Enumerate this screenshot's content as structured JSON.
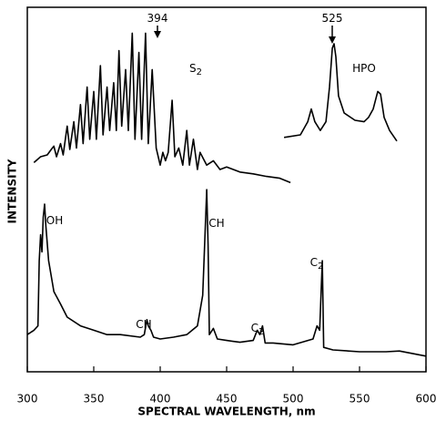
{
  "chart_data": {
    "type": "line",
    "xlabel": "SPECTRAL WAVELENGTH, nm",
    "ylabel": "INTENSITY",
    "xlim": [
      300,
      600
    ],
    "ylim": [
      0,
      100
    ],
    "xticks": [
      300,
      350,
      400,
      450,
      500,
      550,
      600
    ],
    "series": [
      {
        "color": "#000000",
        "x": [
          305,
          310,
          315,
          318,
          320,
          322,
          325,
          327,
          330,
          332,
          335,
          337,
          340,
          342,
          345,
          347,
          350,
          352,
          355,
          357,
          360,
          362,
          365,
          367,
          369,
          371,
          374,
          376,
          379,
          381,
          384,
          386,
          389,
          391,
          394,
          397,
          400,
          402,
          404,
          406,
          409,
          411,
          414,
          417,
          420,
          422,
          425,
          428,
          430,
          435,
          440,
          445,
          450,
          460,
          470,
          480,
          490,
          498
        ],
        "values": [
          57.4,
          59.0,
          59.5,
          61.0,
          61.9,
          59.0,
          62.6,
          59.5,
          67.4,
          61.0,
          68.6,
          61.4,
          73.3,
          62.6,
          78.1,
          63.8,
          76.9,
          63.8,
          84.0,
          65.0,
          78.1,
          66.2,
          79.3,
          66.2,
          88.1,
          67.4,
          82.9,
          66.2,
          92.9,
          63.8,
          87.6,
          63.8,
          92.9,
          62.6,
          82.9,
          61.4,
          56.7,
          60.2,
          57.9,
          60.2,
          74.5,
          59.0,
          61.4,
          56.7,
          66.2,
          56.7,
          63.8,
          55.5,
          60.2,
          56.7,
          57.9,
          55.5,
          56.2,
          54.8,
          54.3,
          53.6,
          53.1,
          51.9
        ]
      },
      {
        "color": "#000000",
        "x": [
          493.2,
          505.5,
          511,
          513.7,
          516.4,
          520.5,
          524.7,
          527.4,
          529.5,
          530.8,
          532.2,
          534.2,
          538.4,
          546.6,
          553.4,
          556.8,
          560.3,
          563.7,
          565.8,
          568.5,
          572.6,
          578.1
        ],
        "values": [
          64.3,
          65,
          68.6,
          72.1,
          68.6,
          66.2,
          68.6,
          78.1,
          88.8,
          90,
          86.4,
          75.7,
          71,
          69,
          68.6,
          69.8,
          72.1,
          76.9,
          76.2,
          69.8,
          66.2,
          63.3
        ]
      },
      {
        "color": "#000000",
        "x": [
          300,
          305,
          308,
          309,
          310,
          311,
          312,
          313,
          314,
          316,
          320,
          325,
          330,
          340,
          350,
          360,
          370,
          385,
          388,
          390,
          391,
          393,
          395,
          400,
          410,
          420,
          428,
          432,
          434,
          435,
          436,
          437,
          440,
          443,
          450,
          460,
          470,
          473,
          475,
          477,
          479,
          485,
          500,
          515,
          518,
          520,
          522,
          523,
          530,
          550,
          570,
          580,
          600
        ],
        "values": [
          10.2,
          11.4,
          12.6,
          30.5,
          37.6,
          32.9,
          42.4,
          46,
          40,
          30.5,
          22,
          18.6,
          15,
          12.6,
          11.4,
          10.2,
          10.2,
          9.5,
          10.2,
          14.3,
          12.6,
          11.4,
          9.5,
          9,
          9.5,
          10.2,
          12.6,
          21,
          40,
          50,
          35,
          10.2,
          11.9,
          9,
          8.6,
          8.1,
          8.6,
          11.4,
          10.2,
          12.6,
          7.9,
          7.9,
          7.4,
          9,
          12.6,
          11.4,
          30.5,
          6.7,
          6,
          5.5,
          5.5,
          5.7,
          4.3
        ]
      }
    ],
    "annotations": [
      {
        "text": "394"
      },
      {
        "text": "S",
        "subscript": "2"
      },
      {
        "text": "525"
      },
      {
        "text": "HPO"
      },
      {
        "text": "OH"
      },
      {
        "text": "CH"
      },
      {
        "text": "CH"
      },
      {
        "text": "C",
        "subscript": "2"
      },
      {
        "text": "C",
        "subscript": "2"
      }
    ]
  }
}
